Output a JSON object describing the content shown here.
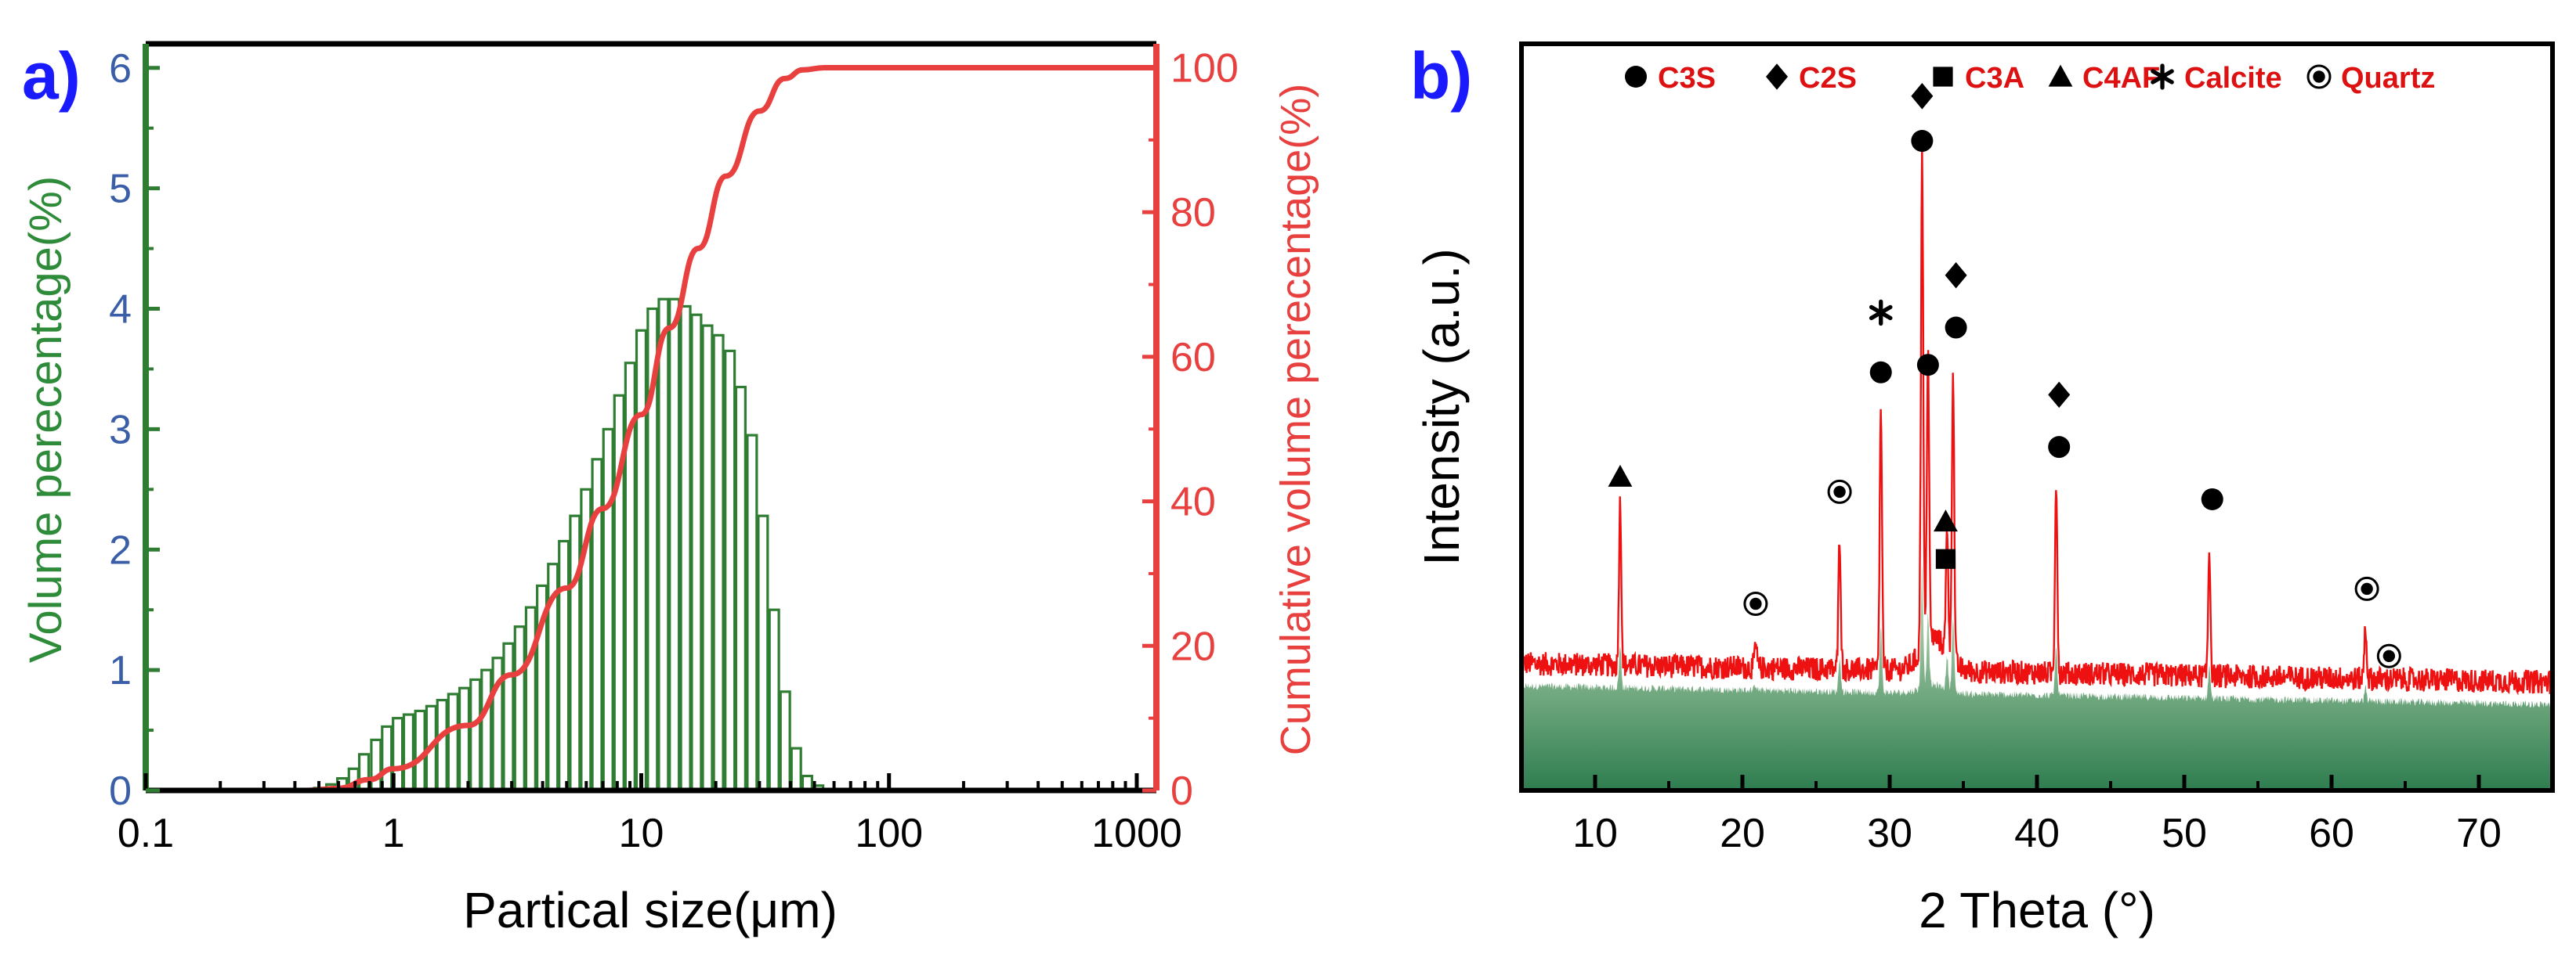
{
  "chart_data": [
    {
      "panel_label": "a)",
      "type": "bar",
      "xlabel": "Partical size(μm)",
      "ylabel": "Volume perecentage(%)",
      "y2label": "Cumulative volume perecentage(%)",
      "x_scale": "log",
      "xlim": [
        0.1,
        1200
      ],
      "ylim": [
        0,
        6.2
      ],
      "y2lim": [
        0,
        103.3
      ],
      "x_ticks": [
        "0.1",
        "1",
        "10",
        "100",
        "1000"
      ],
      "y_ticks": [
        "0",
        "1",
        "2",
        "3",
        "4",
        "5",
        "6"
      ],
      "y2_ticks": [
        "0",
        "20",
        "40",
        "60",
        "80",
        "100"
      ],
      "colors": {
        "bars": "#2e7d32",
        "cumulative": "#e8403f",
        "left_axis": "#2e7d32",
        "right_axis": "#e8403f",
        "tick_left": "#3b5ea8",
        "tick_right": "#e8403f"
      },
      "x": [
        0.5,
        0.56,
        0.62,
        0.69,
        0.76,
        0.85,
        0.94,
        1.04,
        1.15,
        1.28,
        1.42,
        1.57,
        1.74,
        1.93,
        2.14,
        2.37,
        2.63,
        2.91,
        3.23,
        3.58,
        3.97,
        4.4,
        4.87,
        5.4,
        5.98,
        6.63,
        7.35,
        8.14,
        9.02,
        10.0,
        11.1,
        12.3,
        13.6,
        15.1,
        16.7,
        18.5,
        20.5,
        22.8,
        25.2,
        28.0,
        31.0,
        34.4,
        38.1,
        42.2,
        46.8,
        51.9,
        57.5
      ],
      "values": [
        0.02,
        0.05,
        0.1,
        0.18,
        0.3,
        0.42,
        0.53,
        0.6,
        0.63,
        0.66,
        0.7,
        0.75,
        0.8,
        0.85,
        0.92,
        1.0,
        1.1,
        1.22,
        1.36,
        1.52,
        1.7,
        1.88,
        2.07,
        2.28,
        2.5,
        2.75,
        3.0,
        3.28,
        3.55,
        3.82,
        4.0,
        4.08,
        4.08,
        4.02,
        3.95,
        3.86,
        3.78,
        3.65,
        3.35,
        2.95,
        2.28,
        1.5,
        0.82,
        0.35,
        0.12,
        0.04,
        0.01
      ],
      "cumulative": [
        [
          0.1,
          0
        ],
        [
          0.45,
          0
        ],
        [
          0.6,
          0.3
        ],
        [
          0.8,
          1.5
        ],
        [
          1.0,
          3
        ],
        [
          2,
          9
        ],
        [
          3,
          16
        ],
        [
          5,
          28
        ],
        [
          7,
          39
        ],
        [
          10,
          52
        ],
        [
          13,
          64
        ],
        [
          17,
          75
        ],
        [
          22,
          85
        ],
        [
          30,
          94
        ],
        [
          38,
          98.5
        ],
        [
          45,
          99.7
        ],
        [
          55,
          100
        ],
        [
          1200,
          100
        ]
      ]
    },
    {
      "panel_label": "b)",
      "type": "line",
      "xlabel": "2 Theta (°)",
      "ylabel": "Intensity (a.u.)",
      "xlim": [
        5,
        75
      ],
      "x_ticks": [
        "10",
        "20",
        "30",
        "40",
        "50",
        "60",
        "70"
      ],
      "colors": {
        "pattern": "#ee1111",
        "fill_top": "#cde3c2",
        "fill_bottom": "#2e7d4f",
        "legend_text": "#dd1111"
      },
      "legend": [
        {
          "symbol": "circle",
          "label": "C3S"
        },
        {
          "symbol": "diamond",
          "label": "C2S"
        },
        {
          "symbol": "square",
          "label": "C3A"
        },
        {
          "symbol": "triangle",
          "label": "C4AF"
        },
        {
          "symbol": "asterisk",
          "label": "Calcite"
        },
        {
          "symbol": "circle-dot",
          "label": "Quartz"
        }
      ],
      "peaks": [
        {
          "x": 11.7,
          "y": 0.38,
          "phase": "triangle"
        },
        {
          "x": 20.9,
          "y": 0.19,
          "phase": "circle-dot"
        },
        {
          "x": 26.6,
          "y": 0.34,
          "phase": "circle-dot"
        },
        {
          "x": 29.4,
          "y": 0.51,
          "phase": "asterisk"
        },
        {
          "x": 32.2,
          "y": 0.83,
          "phase": "circle"
        },
        {
          "x": 32.6,
          "y": 0.55,
          "phase": "circle"
        },
        {
          "x": 33.9,
          "y": 0.33,
          "phase": "triangle"
        },
        {
          "x": 34.3,
          "y": 0.55,
          "phase": "circle"
        },
        {
          "x": 41.3,
          "y": 0.42,
          "phase": "circle"
        },
        {
          "x": 51.7,
          "y": 0.33,
          "phase": "circle"
        },
        {
          "x": 62.3,
          "y": 0.23,
          "phase": "circle-dot"
        }
      ],
      "markers": [
        {
          "x": 11.7,
          "y": 0.42,
          "symbol": "triangle"
        },
        {
          "x": 20.9,
          "y": 0.25,
          "symbol": "circle-dot"
        },
        {
          "x": 26.6,
          "y": 0.4,
          "symbol": "circle-dot"
        },
        {
          "x": 29.4,
          "y": 0.56,
          "symbol": "circle"
        },
        {
          "x": 29.4,
          "y": 0.64,
          "symbol": "asterisk"
        },
        {
          "x": 32.2,
          "y": 0.87,
          "symbol": "circle"
        },
        {
          "x": 32.2,
          "y": 0.93,
          "symbol": "diamond"
        },
        {
          "x": 32.6,
          "y": 0.57,
          "symbol": "circle"
        },
        {
          "x": 33.8,
          "y": 0.36,
          "symbol": "triangle"
        },
        {
          "x": 33.8,
          "y": 0.31,
          "symbol": "square"
        },
        {
          "x": 34.5,
          "y": 0.62,
          "symbol": "circle"
        },
        {
          "x": 34.5,
          "y": 0.69,
          "symbol": "diamond"
        },
        {
          "x": 41.5,
          "y": 0.46,
          "symbol": "circle"
        },
        {
          "x": 41.5,
          "y": 0.53,
          "symbol": "diamond"
        },
        {
          "x": 51.9,
          "y": 0.39,
          "symbol": "circle"
        },
        {
          "x": 62.4,
          "y": 0.27,
          "symbol": "circle-dot"
        },
        {
          "x": 63.9,
          "y": 0.18,
          "symbol": "circle-dot"
        }
      ]
    }
  ]
}
